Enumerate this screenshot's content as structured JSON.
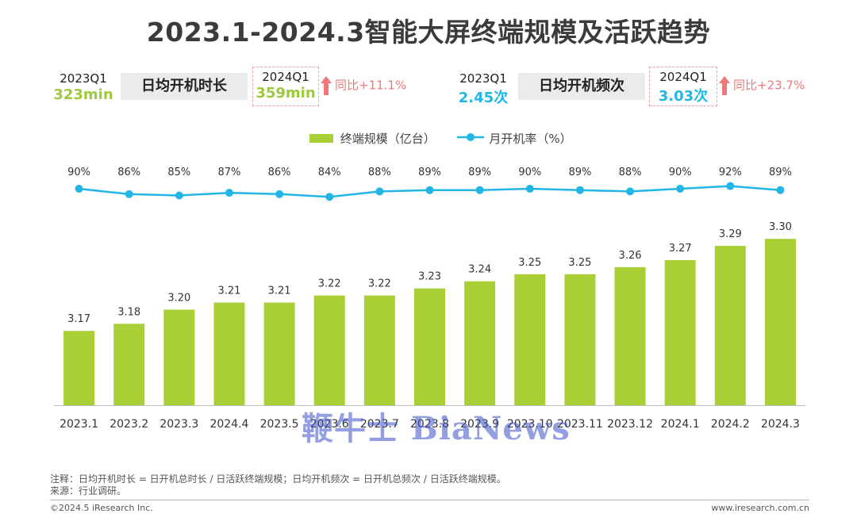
{
  "title": "2023.1-2024.3智能大屏终端规模及活跃趋势",
  "kpis": [
    {
      "old_period": "2023Q1",
      "old_value": "323min",
      "label": "日均开机时长",
      "new_period": "2024Q1",
      "new_value": "359min",
      "yoy": "同比+11.1%",
      "value_color": "#9ec93b"
    },
    {
      "old_period": "2023Q1",
      "old_value": "2.45次",
      "label": "日均开机频次",
      "new_period": "2024Q1",
      "new_value": "3.03次",
      "yoy": "同比+23.7%",
      "value_color": "#1fb8e6"
    }
  ],
  "legend": {
    "bar_label": "终端规模（亿台）",
    "line_label": "月开机率（%）"
  },
  "colors": {
    "bar": "#a8cf35",
    "line": "#21b6e6",
    "accent_red": "#f07878"
  },
  "chart_data": {
    "type": "bar",
    "categories": [
      "2023.1",
      "2023.2",
      "2023.3",
      "2024.4",
      "2023.5",
      "2023.6",
      "2023.7",
      "2023.8",
      "2023.9",
      "2023.10",
      "2023.11",
      "2023.12",
      "2024.1",
      "2024.2",
      "2024.3"
    ],
    "series": [
      {
        "name": "终端规模（亿台）",
        "type": "bar",
        "values": [
          3.17,
          3.18,
          3.2,
          3.21,
          3.21,
          3.22,
          3.22,
          3.23,
          3.24,
          3.25,
          3.25,
          3.26,
          3.27,
          3.29,
          3.3
        ],
        "labels": [
          "3.17",
          "3.18",
          "3.20",
          "3.21",
          "3.21",
          "3.22",
          "3.22",
          "3.23",
          "3.24",
          "3.25",
          "3.25",
          "3.26",
          "3.27",
          "3.29",
          "3.30"
        ]
      },
      {
        "name": "月开机率（%）",
        "type": "line",
        "values": [
          90,
          86,
          85,
          87,
          86,
          84,
          88,
          89,
          89,
          90,
          89,
          88,
          90,
          92,
          89
        ],
        "labels": [
          "90%",
          "86%",
          "85%",
          "87%",
          "86%",
          "84%",
          "88%",
          "89%",
          "89%",
          "90%",
          "89%",
          "88%",
          "90%",
          "92%",
          "89%"
        ]
      }
    ],
    "legend_position": "top-center",
    "grid": false
  },
  "watermark": "鞭牛士 BiaNews",
  "notes": {
    "note": "注释：日均开机时长 = 日开机总时长 / 日活跃终端规模；日均开机频次 = 日开机总频次 / 日活跃终端规模。",
    "source": "来源：行业调研。"
  },
  "footer": {
    "copyright": "©2024.5 iResearch Inc.",
    "site": "www.iresearch.com.cn"
  }
}
